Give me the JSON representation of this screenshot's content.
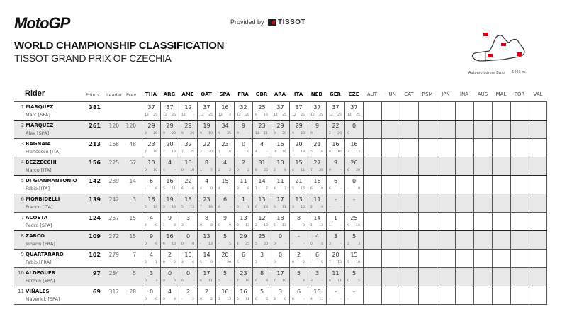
{
  "header": {
    "logo": "MotoGP",
    "provided_by": "Provided by",
    "sponsor": "TISSOT",
    "title": "WORLD CHAMPIONSHIP CLASSIFICATION",
    "subtitle": "TISSOT GRAND PRIX OF CZECHIA",
    "track_name": "Automotodrom Brno",
    "track_length": "5403 m."
  },
  "colors": {
    "row_alt": "#e8e8e8",
    "accent": "#d0021b",
    "grid": "#555555"
  },
  "table": {
    "headers": {
      "rider": "Rider",
      "points": "Points",
      "leader": "Leader",
      "prev": "Prev"
    },
    "races": [
      "THA",
      "ARG",
      "AME",
      "QAT",
      "SPA",
      "FRA",
      "GBR",
      "ARA",
      "ITA",
      "NED",
      "GER",
      "CZE",
      "AUT",
      "HUN",
      "CAT",
      "RSM",
      "JPN",
      "INA",
      "AUS",
      "MAL",
      "POR",
      "VAL"
    ],
    "completed_races": 12,
    "rows": [
      {
        "pos": "1",
        "surname": "MARQUEZ",
        "first": "Marc [SPA]",
        "points": "381",
        "leader": "",
        "prev": "",
        "results": [
          [
            "37",
            "12",
            "25"
          ],
          [
            "37",
            "12",
            "25"
          ],
          [
            "12",
            "12",
            "-"
          ],
          [
            "37",
            "12",
            "25"
          ],
          [
            "16",
            "12",
            "4"
          ],
          [
            "32",
            "12",
            "20"
          ],
          [
            "25",
            "9",
            "16"
          ],
          [
            "37",
            "12",
            "25"
          ],
          [
            "37",
            "12",
            "25"
          ],
          [
            "37",
            "12",
            "25"
          ],
          [
            "37",
            "12",
            "25"
          ],
          [
            "37",
            "12",
            "25"
          ]
        ]
      },
      {
        "pos": "2",
        "surname": "MARQUEZ",
        "first": "Alex [SPA]",
        "points": "261",
        "leader": "120",
        "prev": "120",
        "results": [
          [
            "29",
            "9",
            "20"
          ],
          [
            "29",
            "9",
            "20"
          ],
          [
            "29",
            "9",
            "20"
          ],
          [
            "19",
            "9",
            "10"
          ],
          [
            "34",
            "9",
            "25"
          ],
          [
            "9",
            "9",
            "-"
          ],
          [
            "23",
            "12",
            "11"
          ],
          [
            "29",
            "9",
            "20"
          ],
          [
            "29",
            "9",
            "20"
          ],
          [
            "9",
            "9",
            "-"
          ],
          [
            "22",
            "2",
            "20"
          ],
          [
            "0",
            "0",
            ""
          ]
        ]
      },
      {
        "pos": "3",
        "surname": "BAGNAIA",
        "first": "Francesco [ITA]",
        "points": "213",
        "leader": "168",
        "prev": "48",
        "results": [
          [
            "23",
            "7",
            "16"
          ],
          [
            "20",
            "7",
            "13"
          ],
          [
            "32",
            "7",
            "25"
          ],
          [
            "22",
            "2",
            "20"
          ],
          [
            "23",
            "7",
            "16"
          ],
          [
            "0",
            "-",
            "0"
          ],
          [
            "4",
            "4",
            "-"
          ],
          [
            "16",
            "0",
            "16"
          ],
          [
            "20",
            "7",
            "13"
          ],
          [
            "21",
            "5",
            "16"
          ],
          [
            "16",
            "0",
            "16"
          ],
          [
            "16",
            "3",
            "13"
          ]
        ]
      },
      {
        "pos": "4",
        "surname": "BEZZECCHI",
        "first": "Marco [ITA]",
        "points": "156",
        "leader": "225",
        "prev": "57",
        "results": [
          [
            "10",
            "0",
            "10"
          ],
          [
            "4",
            "4",
            "-"
          ],
          [
            "10",
            "0",
            "10"
          ],
          [
            "8",
            "1",
            "7"
          ],
          [
            "4",
            "2",
            "2"
          ],
          [
            "2",
            "0",
            "2"
          ],
          [
            "31",
            "6",
            "25"
          ],
          [
            "10",
            "2",
            "8"
          ],
          [
            "15",
            "4",
            "11"
          ],
          [
            "27",
            "7",
            "20"
          ],
          [
            "9",
            "9",
            "-"
          ],
          [
            "26",
            "6",
            "20"
          ]
        ]
      },
      {
        "pos": "5",
        "surname": "DI GIANNANTONIO",
        "first": "Fabio [ITA]",
        "points": "142",
        "leader": "239",
        "prev": "14",
        "results": [
          [
            "6",
            "-",
            "6"
          ],
          [
            "16",
            "5",
            "11"
          ],
          [
            "22",
            "6",
            "16"
          ],
          [
            "4",
            "4",
            "0"
          ],
          [
            "15",
            "4",
            "11"
          ],
          [
            "11",
            "3",
            "8"
          ],
          [
            "14",
            "7",
            "7"
          ],
          [
            "11",
            "4",
            "7"
          ],
          [
            "21",
            "5",
            "16"
          ],
          [
            "16",
            "6",
            "10"
          ],
          [
            "6",
            "6",
            "-"
          ],
          [
            "0",
            "-",
            "0"
          ]
        ]
      },
      {
        "pos": "6",
        "surname": "MORBIDELLI",
        "first": "Franco [ITA]",
        "points": "139",
        "leader": "242",
        "prev": "3",
        "results": [
          [
            "18",
            "5",
            "13"
          ],
          [
            "19",
            "3",
            "16"
          ],
          [
            "18",
            "5",
            "13"
          ],
          [
            "23",
            "7",
            "16"
          ],
          [
            "6",
            "6",
            "-"
          ],
          [
            "1",
            "0",
            "1"
          ],
          [
            "13",
            "0",
            "13"
          ],
          [
            "17",
            "6",
            "11"
          ],
          [
            "13",
            "3",
            "10"
          ],
          [
            "11",
            "2",
            "9"
          ],
          [
            "-",
            "-",
            "-"
          ],
          [
            "-",
            "-",
            ""
          ]
        ]
      },
      {
        "pos": "7",
        "surname": "ACOSTA",
        "first": "Pedro [SPA]",
        "points": "124",
        "leader": "257",
        "prev": "15",
        "results": [
          [
            "4",
            "4",
            "0"
          ],
          [
            "9",
            "1",
            "8"
          ],
          [
            "3",
            "3",
            "-"
          ],
          [
            "8",
            "0",
            "8"
          ],
          [
            "9",
            "0",
            "9"
          ],
          [
            "13",
            "0",
            "13"
          ],
          [
            "12",
            "2",
            "10"
          ],
          [
            "18",
            "5",
            "13"
          ],
          [
            "8",
            "-",
            "8"
          ],
          [
            "14",
            "1",
            "13"
          ],
          [
            "1",
            "1",
            "-"
          ],
          [
            "25",
            "9",
            "16"
          ]
        ]
      },
      {
        "pos": "8",
        "surname": "ZARCO",
        "first": "Johann [FRA]",
        "points": "109",
        "leader": "272",
        "prev": "15",
        "results": [
          [
            "9",
            "0",
            "9"
          ],
          [
            "16",
            "6",
            "10"
          ],
          [
            "0",
            "0",
            "0"
          ],
          [
            "13",
            "-",
            "13"
          ],
          [
            "5",
            "-",
            "5"
          ],
          [
            "29",
            "4",
            "25"
          ],
          [
            "25",
            "5",
            "20"
          ],
          [
            "0",
            "0",
            "-"
          ],
          [
            "-",
            "-",
            "-"
          ],
          [
            "4",
            "0",
            "4"
          ],
          [
            "3",
            "3",
            "-"
          ],
          [
            "5",
            "2",
            "3"
          ]
        ]
      },
      {
        "pos": "9",
        "surname": "QUARTARARO",
        "first": "Fabio [FRA]",
        "points": "102",
        "leader": "279",
        "prev": "7",
        "results": [
          [
            "4",
            "3",
            "1"
          ],
          [
            "2",
            "0",
            "2"
          ],
          [
            "10",
            "4",
            "6"
          ],
          [
            "14",
            "5",
            "9"
          ],
          [
            "20",
            "-",
            "20"
          ],
          [
            "6",
            "6",
            "-"
          ],
          [
            "3",
            "3",
            "-"
          ],
          [
            "0",
            "0",
            "-"
          ],
          [
            "2",
            "0",
            "2"
          ],
          [
            "6",
            "-",
            "6"
          ],
          [
            "20",
            "7",
            "13"
          ],
          [
            "15",
            "5",
            "10"
          ]
        ]
      },
      {
        "pos": "10",
        "surname": "ALDEGUER",
        "first": "Fermin [SPA]",
        "points": "97",
        "leader": "284",
        "prev": "5",
        "results": [
          [
            "3",
            "0",
            "3"
          ],
          [
            "0",
            "0",
            "0"
          ],
          [
            "0",
            "0",
            "-"
          ],
          [
            "17",
            "6",
            "11"
          ],
          [
            "5",
            "5",
            "-"
          ],
          [
            "23",
            "7",
            "16"
          ],
          [
            "8",
            "0",
            "8"
          ],
          [
            "17",
            "7",
            "10"
          ],
          [
            "5",
            "1",
            "4"
          ],
          [
            "3",
            "3",
            "-"
          ],
          [
            "11",
            "0",
            "11"
          ],
          [
            "5",
            "0",
            "5"
          ]
        ]
      },
      {
        "pos": "11",
        "surname": "VIÑALES",
        "first": "Maverick [SPA]",
        "points": "69",
        "leader": "312",
        "prev": "28",
        "results": [
          [
            "0",
            "0",
            "0"
          ],
          [
            "4",
            "0",
            "4"
          ],
          [
            "2",
            "-",
            "2"
          ],
          [
            "2",
            "0",
            "2"
          ],
          [
            "16",
            "3",
            "13"
          ],
          [
            "16",
            "5",
            "11"
          ],
          [
            "5",
            "0",
            "5"
          ],
          [
            "3",
            "3",
            "0"
          ],
          [
            "6",
            "6",
            "-"
          ],
          [
            "15",
            "4",
            "11"
          ],
          [
            "-",
            "-",
            "-"
          ],
          [
            "-",
            "-",
            ""
          ]
        ]
      }
    ]
  }
}
